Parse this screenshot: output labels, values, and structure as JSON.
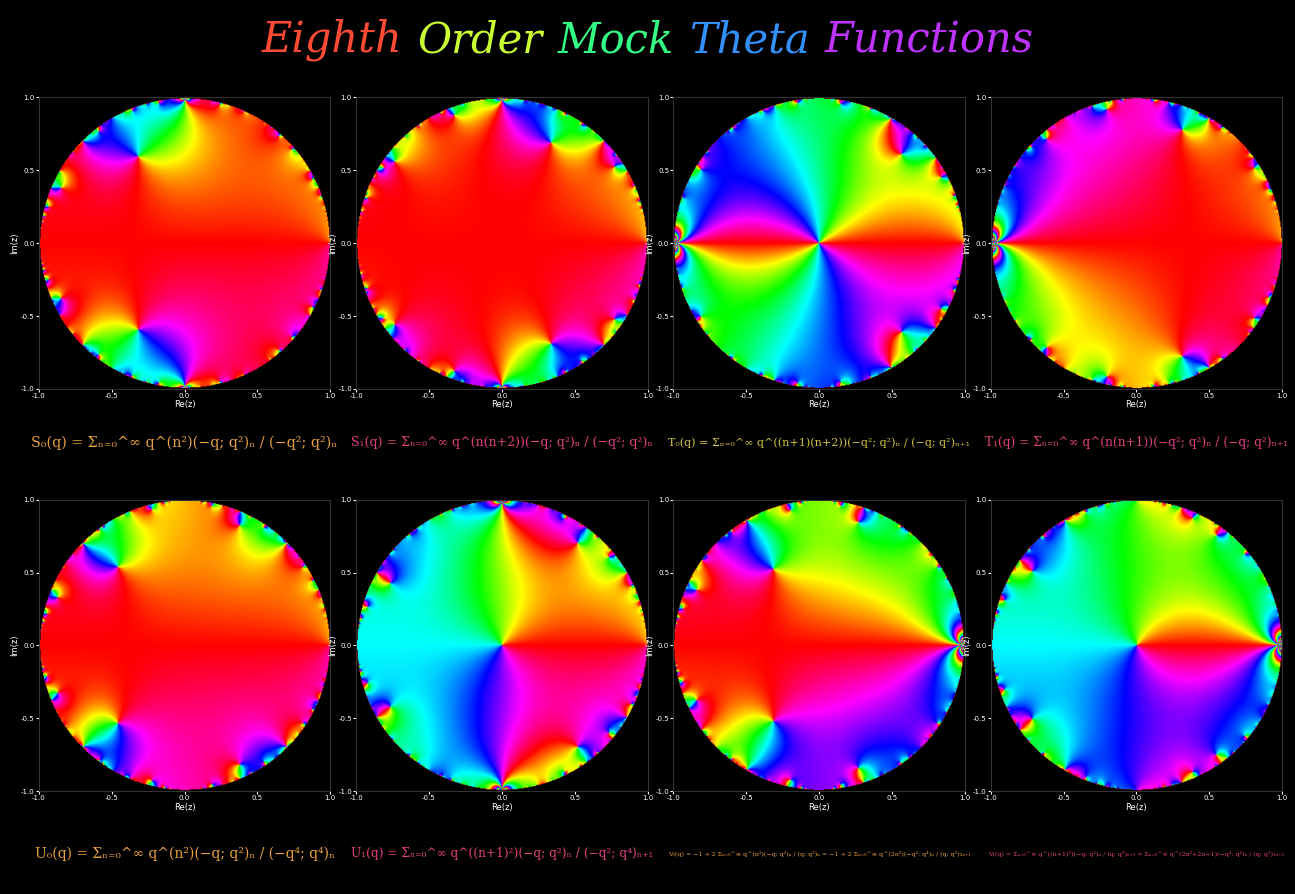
{
  "title": "Eighth Order Mock Theta Functions",
  "chart_data": [
    {
      "type": "domain_coloring",
      "title": "S₀(q) = Σₙ₌₀^∞ q^(n²)(−q; q²)ₙ / (−q²; q²)ₙ",
      "xlabel": "Re(z)",
      "ylabel": "Im(z)",
      "xlim": [
        -1.0,
        1.0
      ],
      "ylim": [
        -1.0,
        1.0
      ],
      "xticks": [
        -1.0,
        -0.5,
        0.0,
        0.5,
        1.0
      ],
      "yticks": [
        -1.0,
        -0.5,
        0.0,
        0.5,
        1.0
      ]
    },
    {
      "type": "domain_coloring",
      "title": "S₁(q) = Σₙ₌₀^∞ q^(n(n+2))(−q; q²)ₙ / (−q²; q²)ₙ",
      "xlabel": "Re(z)",
      "ylabel": "Im(z)",
      "xlim": [
        -1.0,
        1.0
      ],
      "ylim": [
        -1.0,
        1.0
      ],
      "xticks": [
        -1.0,
        -0.5,
        0.0,
        0.5,
        1.0
      ],
      "yticks": [
        -1.0,
        -0.5,
        0.0,
        0.5,
        1.0
      ]
    },
    {
      "type": "domain_coloring",
      "title": "T₀(q) = Σₙ₌₀^∞ q^((n+1)(n+2))(−q²; q²)ₙ / (−q; q²)ₙ₊₁",
      "xlabel": "Re(z)",
      "ylabel": "Im(z)",
      "xlim": [
        -1.0,
        1.0
      ],
      "ylim": [
        -1.0,
        1.0
      ],
      "xticks": [
        -1.0,
        -0.5,
        0.0,
        0.5,
        1.0
      ],
      "yticks": [
        -1.0,
        -0.5,
        0.0,
        0.5,
        1.0
      ]
    },
    {
      "type": "domain_coloring",
      "title": "T₁(q) = Σₙ₌₀^∞ q^(n(n+1))(−q²; q²)ₙ / (−q; q²)ₙ₊₁",
      "xlabel": "Re(z)",
      "ylabel": "Im(z)",
      "xlim": [
        -1.0,
        1.0
      ],
      "ylim": [
        -1.0,
        1.0
      ],
      "xticks": [
        -1.0,
        -0.5,
        0.0,
        0.5,
        1.0
      ],
      "yticks": [
        -1.0,
        -0.5,
        0.0,
        0.5,
        1.0
      ]
    },
    {
      "type": "domain_coloring",
      "title": "U₀(q) = Σₙ₌₀^∞ q^(n²)(−q; q²)ₙ / (−q⁴; q⁴)ₙ",
      "xlabel": "Re(z)",
      "ylabel": "Im(z)",
      "xlim": [
        -1.0,
        1.0
      ],
      "ylim": [
        -1.0,
        1.0
      ],
      "xticks": [
        -1.0,
        -0.5,
        0.0,
        0.5,
        1.0
      ],
      "yticks": [
        -1.0,
        -0.5,
        0.0,
        0.5,
        1.0
      ]
    },
    {
      "type": "domain_coloring",
      "title": "U₁(q) = Σₙ₌₀^∞ q^((n+1)²)(−q; q²)ₙ / (−q²; q⁴)ₙ₊₁",
      "xlabel": "Re(z)",
      "ylabel": "Im(z)",
      "xlim": [
        -1.0,
        1.0
      ],
      "ylim": [
        -1.0,
        1.0
      ],
      "xticks": [
        -1.0,
        -0.5,
        0.0,
        0.5,
        1.0
      ],
      "yticks": [
        -1.0,
        -0.5,
        0.0,
        0.5,
        1.0
      ]
    },
    {
      "type": "domain_coloring",
      "title": "V₀(q) = −1 + 2 Σₙ₌₀^∞ q^(n²)(−q; q²)ₙ / (q; q²)ₙ = −1 + 2 Σₙ₌₀^∞ q^(2n²)(−q²; q⁴)ₙ / (q; q²)₂ₙ₊₁",
      "xlabel": "Re(z)",
      "ylabel": "Im(z)",
      "xlim": [
        -1.0,
        1.0
      ],
      "ylim": [
        -1.0,
        1.0
      ],
      "xticks": [
        -1.0,
        -0.5,
        0.0,
        0.5,
        1.0
      ],
      "yticks": [
        -1.0,
        -0.5,
        0.0,
        0.5,
        1.0
      ]
    },
    {
      "type": "domain_coloring",
      "title": "V₁(q) = Σₙ₌₀^∞ q^((n+1)²)(−q; q²)ₙ / (q; q²)ₙ₊₁ = Σₙ₌₀^∞ q^(2n²+2n+1)(−q⁴; q⁴)ₙ / (q; q²)₂ₙ₊₂",
      "xlabel": "Re(z)",
      "ylabel": "Im(z)",
      "xlim": [
        -1.0,
        1.0
      ],
      "ylim": [
        -1.0,
        1.0
      ],
      "xticks": [
        -1.0,
        -0.5,
        0.0,
        0.5,
        1.0
      ],
      "yticks": [
        -1.0,
        -0.5,
        0.0,
        0.5,
        1.0
      ]
    }
  ]
}
